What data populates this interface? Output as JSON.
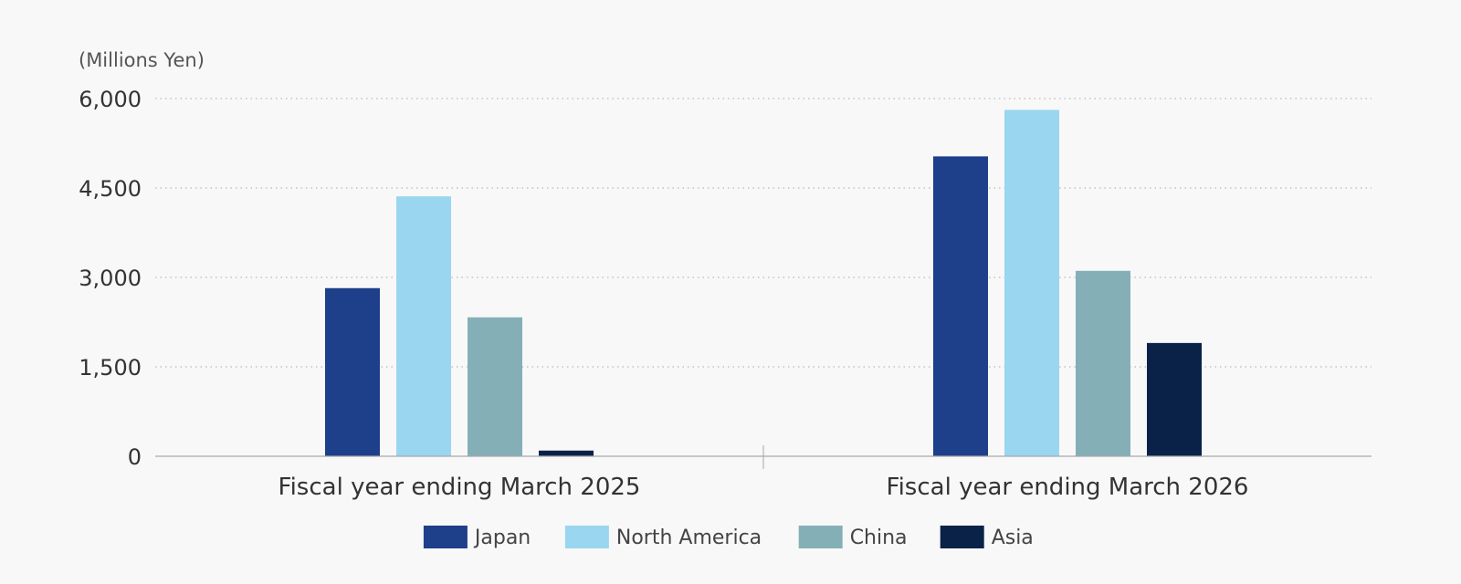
{
  "chart_data": {
    "type": "bar",
    "unit_label": "(Millions Yen)",
    "categories": [
      "Fiscal year ending March 2025",
      "Fiscal year ending March 2026"
    ],
    "series": [
      {
        "name": "Japan",
        "color": "#1e3f8a",
        "values": [
          2820,
          5030
        ]
      },
      {
        "name": "North America",
        "color": "#9ad6f0",
        "values": [
          4360,
          5810
        ]
      },
      {
        "name": "China",
        "color": "#85afb6",
        "values": [
          2330,
          3110
        ]
      },
      {
        "name": "Asia",
        "color": "#0a2248",
        "values": [
          95,
          1900
        ]
      }
    ],
    "yticks": [
      "0",
      "1,500",
      "3,000",
      "4,500",
      "6,000"
    ],
    "ytick_values": [
      0,
      1500,
      3000,
      4500,
      6000
    ],
    "ylim": [
      0,
      6000
    ],
    "grid": true,
    "legend_position": "bottom"
  }
}
